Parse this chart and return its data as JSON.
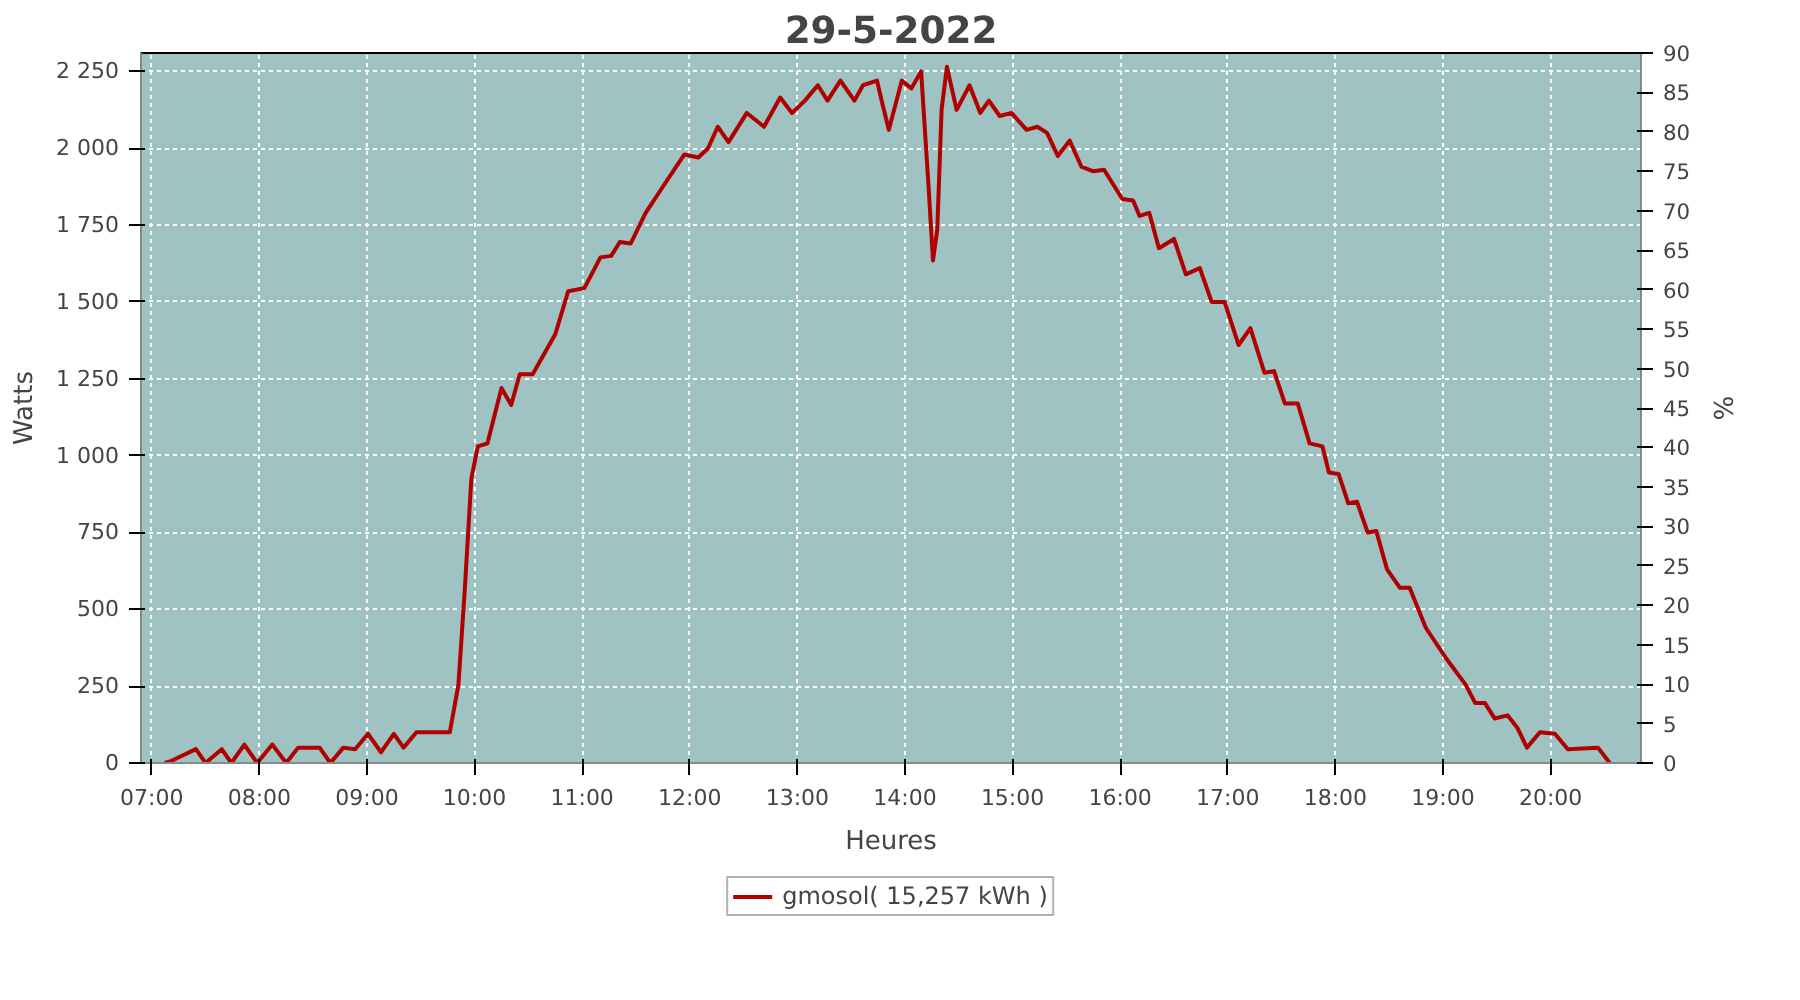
{
  "chart_data": {
    "type": "line",
    "title": "29-5-2022",
    "xlabel": "Heures",
    "ylabel": "Watts",
    "y2label": "%",
    "xlim": [
      6.9,
      20.84
    ],
    "ylim": [
      0,
      2310
    ],
    "y2lim": [
      0,
      90
    ],
    "xticks": [
      {
        "value": 7,
        "label": "07:00"
      },
      {
        "value": 8,
        "label": "08:00"
      },
      {
        "value": 9,
        "label": "09:00"
      },
      {
        "value": 10,
        "label": "10:00"
      },
      {
        "value": 11,
        "label": "11:00"
      },
      {
        "value": 12,
        "label": "12:00"
      },
      {
        "value": 13,
        "label": "13:00"
      },
      {
        "value": 14,
        "label": "14:00"
      },
      {
        "value": 15,
        "label": "15:00"
      },
      {
        "value": 16,
        "label": "16:00"
      },
      {
        "value": 17,
        "label": "17:00"
      },
      {
        "value": 18,
        "label": "18:00"
      },
      {
        "value": 19,
        "label": "19:00"
      },
      {
        "value": 20,
        "label": "20:00"
      }
    ],
    "yticks": [
      0,
      250,
      500,
      750,
      {
        "value": 1000,
        "label": "1 000"
      },
      {
        "value": 1250,
        "label": "1 250"
      },
      {
        "value": 1500,
        "label": "1 500"
      },
      {
        "value": 1750,
        "label": "1 750"
      },
      {
        "value": 2000,
        "label": "2 000"
      },
      {
        "value": 2250,
        "label": "2 250"
      }
    ],
    "y2ticks": [
      0,
      5,
      10,
      15,
      20,
      25,
      30,
      35,
      40,
      45,
      50,
      55,
      60,
      65,
      70,
      75,
      80,
      85,
      90
    ],
    "grid": true,
    "legend": "bottom",
    "line_style": "solid",
    "series": [
      {
        "name": "gmosol( 15,257 kWh )",
        "color": "#b00000",
        "x": [
          7.12,
          7.17,
          7.41,
          7.5,
          7.65,
          7.74,
          7.86,
          7.98,
          8.12,
          8.25,
          8.36,
          8.56,
          8.66,
          8.78,
          8.89,
          9.01,
          9.13,
          9.25,
          9.34,
          9.46,
          9.77,
          9.85,
          9.91,
          9.97,
          10.03,
          10.12,
          10.25,
          10.34,
          10.42,
          10.54,
          10.75,
          10.87,
          11.02,
          11.17,
          11.27,
          11.35,
          11.45,
          11.59,
          11.74,
          11.95,
          12.08,
          12.17,
          12.26,
          12.36,
          12.53,
          12.69,
          12.84,
          12.95,
          13.07,
          13.19,
          13.28,
          13.4,
          13.53,
          13.61,
          13.74,
          13.79,
          13.85,
          13.97,
          14.06,
          14.15,
          14.22,
          14.26,
          14.3,
          14.34,
          14.39,
          14.48,
          14.6,
          14.7,
          14.78,
          14.88,
          14.99,
          15.13,
          15.23,
          15.32,
          15.42,
          15.53,
          15.64,
          15.75,
          15.85,
          16.02,
          16.12,
          16.18,
          16.27,
          16.36,
          16.5,
          16.61,
          16.74,
          16.85,
          16.97,
          17.1,
          17.21,
          17.34,
          17.43,
          17.53,
          17.65,
          17.76,
          17.88,
          17.94,
          18.03,
          18.12,
          18.2,
          18.3,
          18.38,
          18.48,
          18.6,
          18.69,
          18.84,
          19.03,
          19.21,
          19.3,
          19.39,
          19.48,
          19.6,
          19.69,
          19.78,
          19.9,
          20.04,
          20.16,
          20.44,
          20.55
        ],
        "values": [
          0,
          5,
          45,
          0,
          45,
          0,
          60,
          0,
          60,
          0,
          50,
          50,
          0,
          50,
          45,
          95,
          35,
          95,
          50,
          100,
          100,
          255,
          570,
          925,
          1030,
          1040,
          1220,
          1165,
          1265,
          1265,
          1395,
          1535,
          1545,
          1645,
          1650,
          1695,
          1690,
          1790,
          1870,
          1980,
          1970,
          2000,
          2070,
          2020,
          2115,
          2070,
          2165,
          2115,
          2155,
          2205,
          2155,
          2220,
          2155,
          2205,
          2220,
          2145,
          2060,
          2220,
          2195,
          2250,
          1870,
          1635,
          1735,
          2125,
          2265,
          2125,
          2205,
          2115,
          2155,
          2105,
          2115,
          2060,
          2070,
          2050,
          1975,
          2025,
          1940,
          1925,
          1930,
          1835,
          1830,
          1780,
          1790,
          1675,
          1705,
          1590,
          1610,
          1500,
          1500,
          1360,
          1415,
          1270,
          1275,
          1170,
          1170,
          1040,
          1030,
          945,
          940,
          845,
          850,
          750,
          755,
          630,
          570,
          570,
          440,
          340,
          255,
          195,
          195,
          145,
          155,
          115,
          50,
          100,
          95,
          45,
          50,
          0
        ]
      }
    ]
  }
}
